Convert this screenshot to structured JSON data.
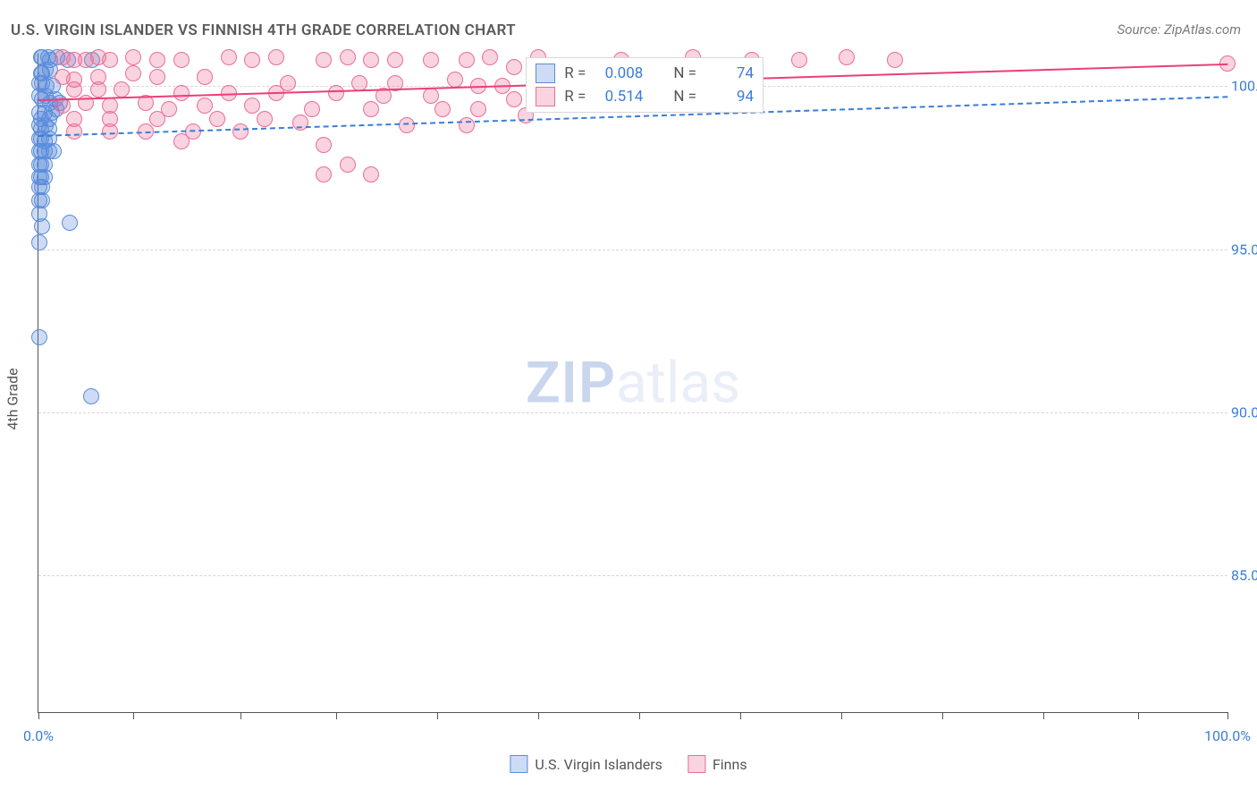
{
  "title": "U.S. VIRGIN ISLANDER VS FINNISH 4TH GRADE CORRELATION CHART",
  "source": "Source: ZipAtlas.com",
  "watermark_zip": "ZIP",
  "watermark_rest": "atlas",
  "ylabel": "4th Grade",
  "chart": {
    "type": "scatter",
    "background_color": "#ffffff",
    "grid_color": "#d6d6d6",
    "axis_color": "#555555",
    "font_color_labels": "#555555",
    "font_color_ticks": "#3b7dd8",
    "tick_fontsize": 16,
    "title_fontsize": 17,
    "marker_radius": 8,
    "xlim": [
      0,
      100
    ],
    "ylim": [
      80.8,
      101.0
    ],
    "x_ticks_at": [
      0,
      8,
      17,
      25,
      33.5,
      42,
      50.5,
      59,
      67.5,
      76,
      84.5,
      92.5,
      100
    ],
    "x_tick_labels": {
      "0": "0.0%",
      "100": "100.0%"
    },
    "y_ticks": [
      85.0,
      90.0,
      95.0,
      100.0
    ],
    "y_tick_labels": [
      "85.0%",
      "90.0%",
      "95.0%",
      "100.0%"
    ],
    "series": {
      "usvi": {
        "label": "U.S. Virgin Islanders",
        "fill": "rgba(90,140,220,0.30)",
        "stroke": "#5a8cdc",
        "reg_color": "#3b7dd8",
        "reg_dashed": true,
        "reg_y_start": 98.5,
        "reg_y_end": 99.7,
        "r": "0.008",
        "n": "74",
        "points": [
          [
            0.2,
            100.9
          ],
          [
            0.3,
            100.9
          ],
          [
            0.8,
            100.9
          ],
          [
            1.0,
            100.8
          ],
          [
            1.6,
            100.9
          ],
          [
            2.5,
            100.8
          ],
          [
            4.5,
            100.8
          ],
          [
            0.2,
            100.4
          ],
          [
            0.3,
            100.4
          ],
          [
            0.6,
            100.5
          ],
          [
            1.0,
            100.5
          ],
          [
            0.1,
            100.1
          ],
          [
            0.3,
            100.1
          ],
          [
            0.7,
            100.0
          ],
          [
            1.2,
            100.0
          ],
          [
            0.1,
            99.7
          ],
          [
            0.3,
            99.6
          ],
          [
            0.6,
            99.7
          ],
          [
            1.0,
            99.5
          ],
          [
            1.4,
            99.6
          ],
          [
            1.8,
            99.5
          ],
          [
            1.1,
            99.2
          ],
          [
            1.5,
            99.3
          ],
          [
            0.1,
            99.2
          ],
          [
            0.25,
            99.0
          ],
          [
            0.5,
            99.2
          ],
          [
            0.9,
            99.0
          ],
          [
            0.1,
            98.8
          ],
          [
            0.25,
            98.7
          ],
          [
            0.6,
            98.8
          ],
          [
            0.9,
            98.7
          ],
          [
            0.1,
            98.4
          ],
          [
            0.25,
            98.4
          ],
          [
            0.5,
            98.3
          ],
          [
            0.9,
            98.4
          ],
          [
            0.05,
            98.0
          ],
          [
            0.25,
            98.0
          ],
          [
            0.5,
            98.0
          ],
          [
            0.9,
            98.0
          ],
          [
            1.3,
            98.0
          ],
          [
            0.05,
            97.6
          ],
          [
            0.25,
            97.6
          ],
          [
            0.5,
            97.6
          ],
          [
            0.05,
            97.2
          ],
          [
            0.25,
            97.2
          ],
          [
            0.5,
            97.2
          ],
          [
            0.05,
            96.9
          ],
          [
            0.3,
            96.9
          ],
          [
            0.05,
            96.5
          ],
          [
            0.3,
            96.5
          ],
          [
            0.05,
            96.1
          ],
          [
            0.3,
            95.7
          ],
          [
            2.6,
            95.8
          ],
          [
            0.1,
            95.2
          ],
          [
            0.1,
            92.3
          ],
          [
            4.4,
            90.5
          ]
        ]
      },
      "finns": {
        "label": "Finns",
        "fill": "rgba(235,110,150,0.30)",
        "stroke": "#eb6e96",
        "reg_color": "#eb3e78",
        "reg_dashed": false,
        "reg_y_start": 99.6,
        "reg_y_end": 100.7,
        "r": "0.514",
        "n": "94",
        "points": [
          [
            2,
            100.9
          ],
          [
            3,
            100.8
          ],
          [
            4,
            100.8
          ],
          [
            5,
            100.9
          ],
          [
            6,
            100.8
          ],
          [
            8,
            100.9
          ],
          [
            10,
            100.8
          ],
          [
            12,
            100.8
          ],
          [
            16,
            100.9
          ],
          [
            18,
            100.8
          ],
          [
            20,
            100.9
          ],
          [
            24,
            100.8
          ],
          [
            26,
            100.9
          ],
          [
            28,
            100.8
          ],
          [
            30,
            100.8
          ],
          [
            33,
            100.8
          ],
          [
            36,
            100.8
          ],
          [
            38,
            100.9
          ],
          [
            40,
            100.6
          ],
          [
            42,
            100.9
          ],
          [
            45,
            100.6
          ],
          [
            49,
            100.8
          ],
          [
            55,
            100.9
          ],
          [
            60,
            100.8
          ],
          [
            64,
            100.8
          ],
          [
            68,
            100.9
          ],
          [
            72,
            100.8
          ],
          [
            100,
            100.7
          ],
          [
            2,
            100.3
          ],
          [
            3,
            100.2
          ],
          [
            5,
            100.3
          ],
          [
            8,
            100.4
          ],
          [
            10,
            100.3
          ],
          [
            14,
            100.3
          ],
          [
            21,
            100.1
          ],
          [
            27,
            100.1
          ],
          [
            30,
            100.1
          ],
          [
            35,
            100.2
          ],
          [
            37,
            100.0
          ],
          [
            39,
            100.0
          ],
          [
            42,
            100.3
          ],
          [
            46,
            99.9
          ],
          [
            52,
            100.0
          ],
          [
            3,
            99.9
          ],
          [
            5,
            99.9
          ],
          [
            7,
            99.9
          ],
          [
            12,
            99.8
          ],
          [
            16,
            99.8
          ],
          [
            20,
            99.8
          ],
          [
            25,
            99.8
          ],
          [
            29,
            99.7
          ],
          [
            33,
            99.7
          ],
          [
            40,
            99.6
          ],
          [
            47,
            99.7
          ],
          [
            2,
            99.4
          ],
          [
            4,
            99.5
          ],
          [
            6,
            99.4
          ],
          [
            9,
            99.5
          ],
          [
            11,
            99.3
          ],
          [
            14,
            99.4
          ],
          [
            18,
            99.4
          ],
          [
            23,
            99.3
          ],
          [
            28,
            99.3
          ],
          [
            34,
            99.3
          ],
          [
            37,
            99.3
          ],
          [
            41,
            99.1
          ],
          [
            3,
            99.0
          ],
          [
            6,
            99.0
          ],
          [
            10,
            99.0
          ],
          [
            15,
            99.0
          ],
          [
            19,
            99.0
          ],
          [
            22,
            98.9
          ],
          [
            31,
            98.8
          ],
          [
            36,
            98.8
          ],
          [
            3,
            98.6
          ],
          [
            6,
            98.6
          ],
          [
            9,
            98.6
          ],
          [
            13,
            98.6
          ],
          [
            17,
            98.6
          ],
          [
            12,
            98.3
          ],
          [
            24,
            98.2
          ],
          [
            26,
            97.6
          ],
          [
            24,
            97.3
          ],
          [
            28,
            97.3
          ]
        ]
      }
    },
    "stats_box": {
      "left_pct": 41.0,
      "top_y": 100.9,
      "r_label": "R =",
      "n_label": "N ="
    },
    "legend_bottom_swatch_border": {
      "usvi": "#5a8cdc",
      "finns": "#eb6e96"
    },
    "legend_bottom_swatch_fill": {
      "usvi": "rgba(90,140,220,0.30)",
      "finns": "rgba(235,110,150,0.30)"
    }
  }
}
